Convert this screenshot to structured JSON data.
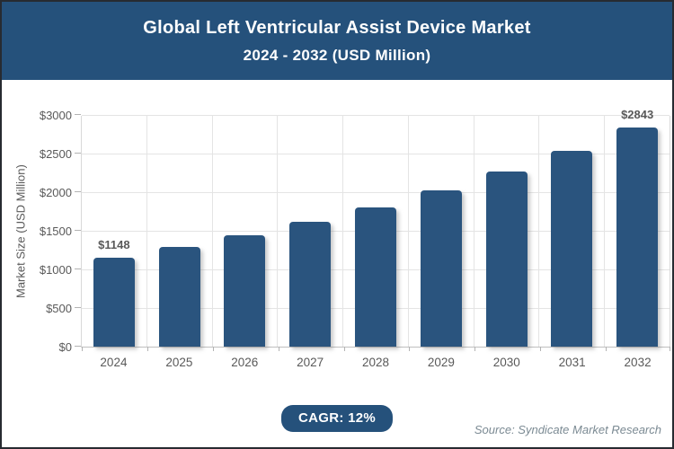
{
  "header": {
    "title_line1": "Global Left Ventricular Assist Device Market",
    "title_line2": "2024 - 2032 (USD Million)"
  },
  "chart_data": {
    "type": "bar",
    "title": "Global Left Ventricular Assist Device Market 2024 - 2032 (USD Million)",
    "categories": [
      "2024",
      "2025",
      "2026",
      "2027",
      "2028",
      "2029",
      "2030",
      "2031",
      "2032"
    ],
    "values": [
      1148,
      1286,
      1440,
      1613,
      1806,
      2023,
      2266,
      2538,
      2843
    ],
    "labeled_points": [
      {
        "index": 0,
        "label": "$1148"
      },
      {
        "index": 8,
        "label": "$2843"
      }
    ],
    "xlabel": "",
    "ylabel": "Market Size (USD Million)",
    "ylim": [
      0,
      3000
    ],
    "ytick_step": 500,
    "ytick_labels": [
      "$0",
      "$500",
      "$1000",
      "$1500",
      "$2000",
      "$2500",
      "$3000"
    ],
    "grid": true,
    "legend": null,
    "cagr_annotation": "CAGR: 12%"
  },
  "footer": {
    "cagr_label": "CAGR: 12%",
    "source": "Source: Syndicate Market Research"
  },
  "colors": {
    "header_bg": "#25517B",
    "bar_fill": "#2A547E",
    "badge_bg": "#25517B",
    "label_gray": "#595959",
    "source_gray": "#7b8a93"
  }
}
